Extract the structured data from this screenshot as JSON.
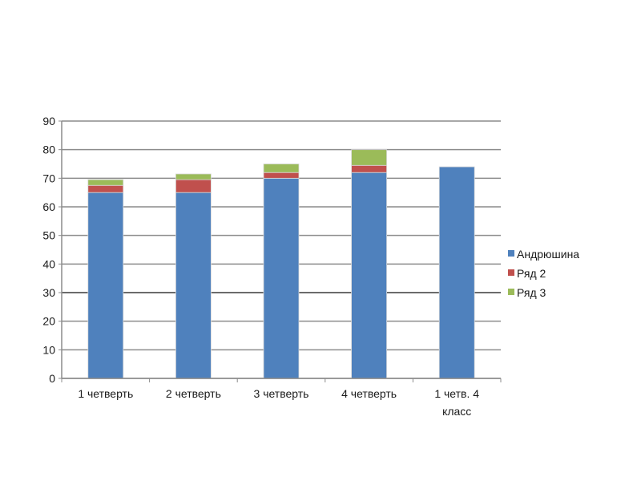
{
  "chart_data": {
    "type": "bar",
    "stacked": true,
    "title": "",
    "xlabel": "",
    "ylabel": "",
    "ylim": [
      0,
      90
    ],
    "yticks": [
      0,
      10,
      20,
      30,
      40,
      50,
      60,
      70,
      80,
      90
    ],
    "grid": true,
    "legend_position": "right",
    "categories": [
      [
        "1 четверть"
      ],
      [
        "2 четверть"
      ],
      [
        "3 четверть"
      ],
      [
        "4 четверть"
      ],
      [
        "1 четв. 4",
        "класс"
      ]
    ],
    "series": [
      {
        "name": "Андрюшина",
        "color": "#4f81bd",
        "values": [
          65,
          65,
          70,
          72,
          74
        ]
      },
      {
        "name": "Ряд 2",
        "color": "#c0504d",
        "values": [
          2.5,
          4.5,
          2,
          2.5,
          0
        ]
      },
      {
        "name": "Ряд 3",
        "color": "#9bbb59",
        "values": [
          2,
          2,
          3,
          5.5,
          0
        ]
      }
    ]
  }
}
